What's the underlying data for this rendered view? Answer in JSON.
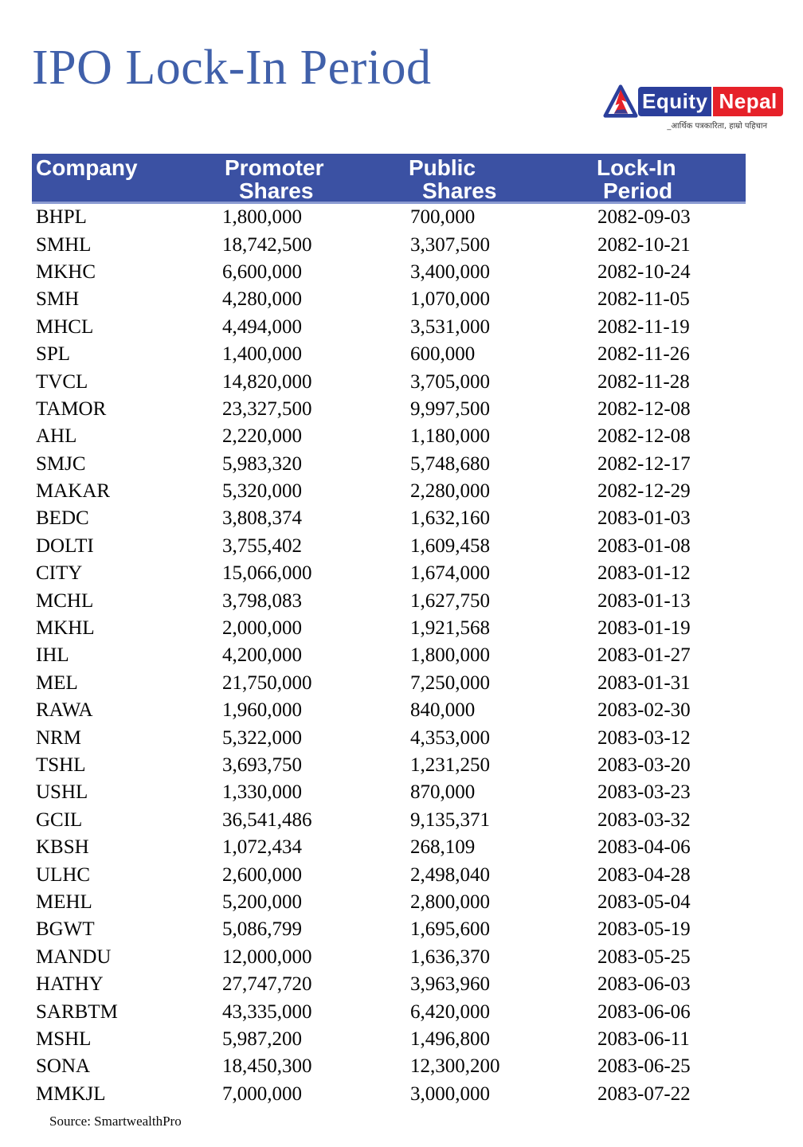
{
  "page": {
    "title": "IPO Lock-In Period",
    "source": "Source: SmartwealthPro"
  },
  "logo": {
    "equity": "Equity",
    "nepal": "Nepal",
    "tagline": "_आर्थिक पत्रकारिता, हाम्रो पहिचान",
    "blue": "#2b3f9b",
    "red": "#e62129"
  },
  "colors": {
    "header_bar": "#3b51a3",
    "title_blue": "#4060aa",
    "body_text": "#050505"
  },
  "table": {
    "headers": [
      {
        "line1": "Company",
        "line2": ""
      },
      {
        "line1": "Promoter",
        "line2": "Shares"
      },
      {
        "line1": "Public",
        "line2": "Shares"
      },
      {
        "line1": "Lock-In",
        "line2": "Period"
      }
    ],
    "rows": [
      {
        "company": "BHPL",
        "promoter_shares": "1,800,000",
        "public_shares": "700,000",
        "lockin_period": "2082-09-03"
      },
      {
        "company": "SMHL",
        "promoter_shares": "18,742,500",
        "public_shares": "3,307,500",
        "lockin_period": "2082-10-21"
      },
      {
        "company": "MKHC",
        "promoter_shares": "6,600,000",
        "public_shares": "3,400,000",
        "lockin_period": "2082-10-24"
      },
      {
        "company": "SMH",
        "promoter_shares": "4,280,000",
        "public_shares": "1,070,000",
        "lockin_period": "2082-11-05"
      },
      {
        "company": "MHCL",
        "promoter_shares": "4,494,000",
        "public_shares": "3,531,000",
        "lockin_period": "2082-11-19"
      },
      {
        "company": "SPL",
        "promoter_shares": "1,400,000",
        "public_shares": "600,000",
        "lockin_period": "2082-11-26"
      },
      {
        "company": "TVCL",
        "promoter_shares": "14,820,000",
        "public_shares": "3,705,000",
        "lockin_period": "2082-11-28"
      },
      {
        "company": "TAMOR",
        "promoter_shares": "23,327,500",
        "public_shares": "9,997,500",
        "lockin_period": "2082-12-08"
      },
      {
        "company": "AHL",
        "promoter_shares": "2,220,000",
        "public_shares": "1,180,000",
        "lockin_period": "2082-12-08"
      },
      {
        "company": "SMJC",
        "promoter_shares": "5,983,320",
        "public_shares": "5,748,680",
        "lockin_period": "2082-12-17"
      },
      {
        "company": "MAKAR",
        "promoter_shares": "5,320,000",
        "public_shares": "2,280,000",
        "lockin_period": "2082-12-29"
      },
      {
        "company": "BEDC",
        "promoter_shares": "3,808,374",
        "public_shares": "1,632,160",
        "lockin_period": "2083-01-03"
      },
      {
        "company": "DOLTI",
        "promoter_shares": "3,755,402",
        "public_shares": "1,609,458",
        "lockin_period": "2083-01-08"
      },
      {
        "company": "CITY",
        "promoter_shares": "15,066,000",
        "public_shares": "1,674,000",
        "lockin_period": "2083-01-12"
      },
      {
        "company": "MCHL",
        "promoter_shares": "3,798,083",
        "public_shares": "1,627,750",
        "lockin_period": "2083-01-13"
      },
      {
        "company": "MKHL",
        "promoter_shares": "2,000,000",
        "public_shares": "1,921,568",
        "lockin_period": "2083-01-19"
      },
      {
        "company": "IHL",
        "promoter_shares": "4,200,000",
        "public_shares": "1,800,000",
        "lockin_period": "2083-01-27"
      },
      {
        "company": "MEL",
        "promoter_shares": "21,750,000",
        "public_shares": "7,250,000",
        "lockin_period": "2083-01-31"
      },
      {
        "company": "RAWA",
        "promoter_shares": "1,960,000",
        "public_shares": "840,000",
        "lockin_period": "2083-02-30"
      },
      {
        "company": "NRM",
        "promoter_shares": "5,322,000",
        "public_shares": "4,353,000",
        "lockin_period": "2083-03-12"
      },
      {
        "company": "TSHL",
        "promoter_shares": "3,693,750",
        "public_shares": "1,231,250",
        "lockin_period": "2083-03-20"
      },
      {
        "company": "USHL",
        "promoter_shares": "1,330,000",
        "public_shares": "870,000",
        "lockin_period": "2083-03-23"
      },
      {
        "company": "GCIL",
        "promoter_shares": "36,541,486",
        "public_shares": "9,135,371",
        "lockin_period": "2083-03-32"
      },
      {
        "company": "KBSH",
        "promoter_shares": "1,072,434",
        "public_shares": "268,109",
        "lockin_period": "2083-04-06"
      },
      {
        "company": "ULHC",
        "promoter_shares": "2,600,000",
        "public_shares": "2,498,040",
        "lockin_period": "2083-04-28"
      },
      {
        "company": "MEHL",
        "promoter_shares": "5,200,000",
        "public_shares": "2,800,000",
        "lockin_period": "2083-05-04"
      },
      {
        "company": "BGWT",
        "promoter_shares": "5,086,799",
        "public_shares": "1,695,600",
        "lockin_period": "2083-05-19"
      },
      {
        "company": "MANDU",
        "promoter_shares": "12,000,000",
        "public_shares": "1,636,370",
        "lockin_period": "2083-05-25"
      },
      {
        "company": "HATHY",
        "promoter_shares": "27,747,720",
        "public_shares": "3,963,960",
        "lockin_period": "2083-06-03"
      },
      {
        "company": "SARBTM",
        "promoter_shares": "43,335,000",
        "public_shares": "6,420,000",
        "lockin_period": "2083-06-06"
      },
      {
        "company": "MSHL",
        "promoter_shares": "5,987,200",
        "public_shares": "1,496,800",
        "lockin_period": "2083-06-11"
      },
      {
        "company": "SONA",
        "promoter_shares": "18,450,300",
        "public_shares": "12,300,200",
        "lockin_period": "2083-06-25"
      },
      {
        "company": "MMKJL",
        "promoter_shares": "7,000,000",
        "public_shares": "3,000,000",
        "lockin_period": "2083-07-22"
      }
    ]
  }
}
